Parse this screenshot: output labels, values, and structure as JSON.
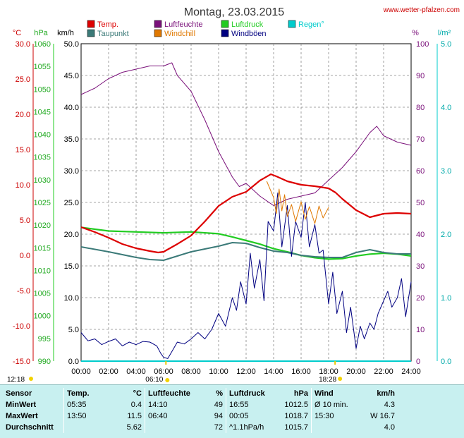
{
  "header": {
    "title": "Montag, 23.03.2015",
    "site": "www.wetter-pfalzen.com"
  },
  "colors": {
    "temp": "#dd0000",
    "dewpoint": "#3b7a78",
    "humidity": "#7a107a",
    "windchill": "#e07800",
    "pressure": "#22cc22",
    "gust": "#000080",
    "rain": "#00cccc"
  },
  "chart_data": {
    "type": "line",
    "title": "Montag, 23.03.2015",
    "x_unit": "hours",
    "xlim": [
      0,
      24
    ],
    "x_ticks": [
      "00:00",
      "02:00",
      "04:00",
      "06:00",
      "08:00",
      "10:00",
      "12:00",
      "14:00",
      "16:00",
      "18:00",
      "20:00",
      "22:00",
      "24:00"
    ],
    "grid": true,
    "axes": {
      "temp": {
        "unit": "°C",
        "range": [
          -15,
          30
        ],
        "ticks": [
          "30.0",
          "25.0",
          "20.0",
          "15.0",
          "10.0",
          "5.0",
          "0.0",
          "-5.0",
          "-10.0",
          "-15.0"
        ]
      },
      "pressure": {
        "unit": "hPa",
        "range": [
          990,
          1060
        ],
        "ticks": [
          "1060",
          "1055",
          "1050",
          "1045",
          "1040",
          "1035",
          "1030",
          "1025",
          "1020",
          "1015",
          "1010",
          "1005",
          "1000",
          "995",
          "990"
        ]
      },
      "wind": {
        "unit": "km/h",
        "range": [
          0,
          50
        ],
        "ticks": [
          "50.0",
          "45.0",
          "40.0",
          "35.0",
          "30.0",
          "25.0",
          "20.0",
          "15.0",
          "10.0",
          "5.0",
          "0.0"
        ]
      },
      "humidity": {
        "unit": "%",
        "range": [
          0,
          100
        ],
        "ticks": [
          "100",
          "90",
          "80",
          "70",
          "60",
          "50",
          "40",
          "30",
          "20",
          "10",
          "0"
        ]
      },
      "rain": {
        "unit": "l/m²",
        "range": [
          0,
          5
        ],
        "ticks": [
          "5.0",
          "4.0",
          "3.0",
          "2.0",
          "1.0",
          "0.0"
        ]
      }
    },
    "legend": [
      {
        "key": "temp",
        "label": "Temp."
      },
      {
        "key": "dewpoint",
        "label": "Taupunkt"
      },
      {
        "key": "humidity",
        "label": "Luftfeuchte"
      },
      {
        "key": "windchill",
        "label": "Windchill"
      },
      {
        "key": "pressure",
        "label": "Luftdruck"
      },
      {
        "key": "gust",
        "label": "Windböen"
      },
      {
        "key": "rain",
        "label": "Regen°"
      }
    ],
    "series": [
      {
        "key": "temp",
        "name": "Temp.",
        "axis": "temp",
        "x": [
          0,
          1,
          2,
          3,
          4,
          5,
          5.6,
          6,
          7,
          8,
          9,
          10,
          11,
          12,
          12.5,
          13,
          13.8,
          14.2,
          15,
          16,
          17,
          18,
          18.5,
          19,
          20,
          21,
          22,
          23,
          24
        ],
        "y": [
          4.0,
          3.3,
          2.5,
          1.6,
          1.0,
          0.6,
          0.4,
          0.5,
          1.6,
          2.8,
          4.8,
          7.0,
          8.3,
          9.0,
          9.8,
          10.6,
          11.5,
          11.2,
          10.5,
          10.0,
          9.8,
          9.5,
          8.9,
          8.0,
          6.4,
          5.4,
          5.9,
          6.0,
          5.9
        ]
      },
      {
        "key": "dewpoint",
        "name": "Taupunkt",
        "axis": "temp",
        "x": [
          0,
          2,
          4,
          5,
          6,
          7,
          8,
          9,
          10,
          11,
          12,
          13,
          14,
          15,
          16,
          17,
          18,
          19,
          20,
          21,
          22,
          23,
          24
        ],
        "y": [
          1.2,
          0.5,
          -0.3,
          -0.6,
          -0.7,
          -0.1,
          0.5,
          0.9,
          1.3,
          1.8,
          1.7,
          1.1,
          0.6,
          0.4,
          0.0,
          -0.2,
          -0.3,
          -0.3,
          0.4,
          0.8,
          0.4,
          0.2,
          0.2
        ]
      },
      {
        "key": "humidity",
        "name": "Luftfeuchte",
        "axis": "humidity",
        "x": [
          0,
          1,
          2,
          3,
          4,
          5,
          6,
          6.6,
          7,
          8,
          9,
          10,
          11,
          11.5,
          12,
          13,
          14,
          15,
          16,
          17,
          17.5,
          18,
          19,
          20,
          21,
          21.5,
          22,
          23,
          24
        ],
        "y": [
          84,
          86,
          89,
          91,
          92,
          93,
          93,
          94,
          90,
          85,
          76,
          66,
          58,
          55,
          56,
          52,
          49,
          51,
          52,
          53,
          55,
          57,
          61,
          66,
          72,
          74,
          71,
          69,
          68
        ]
      },
      {
        "key": "windchill",
        "name": "Windchill",
        "axis": "temp",
        "x": [
          13.5,
          14,
          14.2,
          14.4,
          14.6,
          14.8,
          15,
          15.3,
          15.6,
          16,
          16.3,
          16.6,
          17,
          17.3,
          17.6,
          18
        ],
        "y": [
          10.5,
          8.2,
          5.9,
          9.4,
          6.3,
          8.6,
          5.5,
          7.2,
          4.8,
          7.6,
          5.1,
          6.9,
          4.5,
          7.0,
          5.3,
          6.8
        ]
      },
      {
        "key": "pressure",
        "name": "Luftdruck",
        "axis": "pressure",
        "x": [
          0,
          2,
          4,
          6,
          8,
          10,
          11,
          12,
          13,
          14,
          15,
          16,
          17,
          18,
          19,
          20,
          21,
          22,
          23,
          24
        ],
        "y": [
          1019.5,
          1018.7,
          1018.5,
          1018.3,
          1018.5,
          1018.1,
          1017.4,
          1016.6,
          1015.8,
          1014.8,
          1014.1,
          1013.3,
          1012.8,
          1012.5,
          1012.6,
          1013.2,
          1013.6,
          1013.8,
          1013.6,
          1013.2
        ]
      },
      {
        "key": "gust",
        "name": "Windböen",
        "axis": "wind",
        "x": [
          0,
          0.5,
          1,
          1.5,
          2,
          2.5,
          3,
          3.5,
          4,
          4.5,
          5,
          5.5,
          5.8,
          6,
          6.3,
          6.6,
          7,
          7.5,
          8,
          8.5,
          9,
          9.5,
          10,
          10.5,
          11,
          11.3,
          11.6,
          12,
          12.3,
          12.6,
          13,
          13.3,
          13.6,
          14,
          14.3,
          14.6,
          15,
          15.3,
          15.6,
          16,
          16.3,
          16.6,
          17,
          17.3,
          17.6,
          18,
          18.3,
          18.6,
          19,
          19.3,
          19.6,
          20,
          20.3,
          20.6,
          21,
          21.3,
          21.6,
          22,
          22.3,
          22.6,
          23,
          23.3,
          23.6,
          24
        ],
        "y": [
          4.5,
          3.2,
          3.5,
          2.6,
          3.1,
          3.5,
          2.4,
          3.0,
          2.6,
          3.1,
          3.0,
          2.4,
          1.2,
          0.6,
          0.4,
          1.5,
          3.0,
          2.7,
          3.5,
          4.5,
          3.5,
          5.0,
          7.5,
          5.5,
          10.0,
          8.0,
          12.5,
          9.0,
          17.0,
          11.5,
          16.0,
          9.5,
          22.0,
          20.5,
          26.5,
          18.0,
          24.5,
          16.5,
          22.0,
          19.5,
          25.0,
          18.0,
          21.5,
          17.0,
          17.5,
          9.0,
          14.0,
          7.5,
          11.0,
          4.5,
          8.5,
          2.0,
          5.5,
          3.5,
          6.0,
          5.0,
          7.5,
          9.5,
          11.0,
          8.5,
          10.0,
          13.0,
          7.0,
          12.5
        ]
      },
      {
        "key": "rain",
        "name": "Regen°",
        "axis": "rain",
        "x": [
          0,
          24
        ],
        "y": [
          0,
          0
        ]
      }
    ],
    "sun_markers": {
      "sunrise": "06:10",
      "sunset": "18:28",
      "sunrise_h": 6.17,
      "sunset_h": 18.47,
      "top_left": "12:18"
    }
  },
  "stats": {
    "headers": {
      "sensor": "Sensor",
      "temp": "Temp.",
      "temp_unit": "°C",
      "hum": "Luftfeuchte",
      "hum_unit": "%",
      "press": "Luftdruck",
      "press_unit": "hPa",
      "wind": "Wind",
      "wind_unit": "km/h"
    },
    "rows": [
      {
        "label": "MinWert",
        "temp_time": "05:35",
        "temp_val": "0.4",
        "hum_time": "14:10",
        "hum_val": "49",
        "press_time": "16:55",
        "press_val": "1012.5",
        "wind_time": "Ø 10 min.",
        "wind_val": "4.3"
      },
      {
        "label": "MaxWert",
        "temp_time": "13:50",
        "temp_val": "11.5",
        "hum_time": "06:40",
        "hum_val": "94",
        "press_time": "00:05",
        "press_val": "1018.7",
        "wind_time": "15:30",
        "wind_val": "W 16.7"
      },
      {
        "label": "Durchschnitt",
        "temp_time": "",
        "temp_val": "5.62",
        "hum_time": "",
        "hum_val": "72",
        "press_time": "^1.1hPa/h",
        "press_val": "1015.7",
        "wind_time": "",
        "wind_val": "4.0"
      }
    ]
  }
}
